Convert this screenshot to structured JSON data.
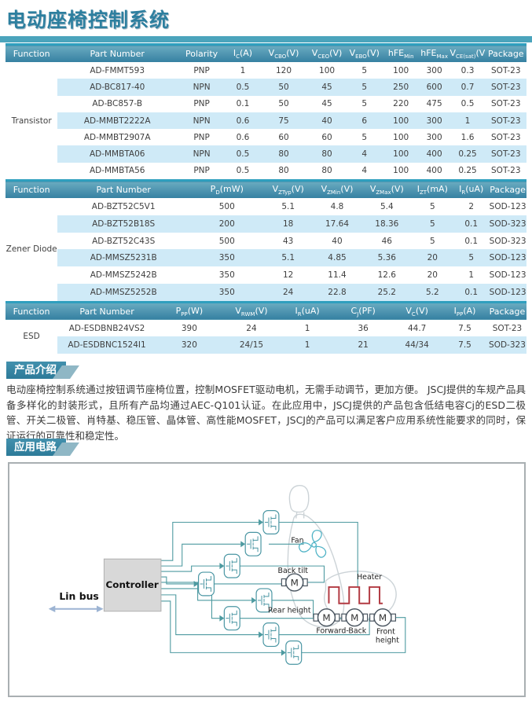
{
  "page": {
    "title": "电动座椅控制系统"
  },
  "colors": {
    "accent_teal": "#4ba4bc",
    "header_gradient_top": "#6aabc0",
    "header_gradient_bottom": "#3580a1",
    "row_stripe_blue": "#cfeaf7",
    "wire_teal": "#4d9aa0",
    "heater_red": "#b23a42",
    "fan_teal": "#4fb3c6",
    "seat_gray": "#ccd3d7"
  },
  "tables": [
    {
      "function_label": "Transistor",
      "col_widths": [
        "10%",
        "22.9%",
        "9.5%",
        "6.3%",
        "9.4%",
        "7.2%",
        "7.2%",
        "6.8%",
        "6%",
        "6.8%",
        "7.9%"
      ],
      "headers": [
        "Function",
        "Part Number",
        "Polarity",
        "I~C~(A)",
        "V~CBO~(V)",
        "V~CEO~(V)",
        "V~EBO~(V)",
        "hFE~Min~",
        "hFE~Max~",
        "V~CE(sat)~(V)",
        "Package"
      ],
      "rows": [
        [
          "AD-FMMT593",
          "PNP",
          "1",
          "120",
          "100",
          "5",
          "100",
          "300",
          "0.3",
          "SOT-23"
        ],
        [
          "AD-BC817-40",
          "NPN",
          "0.5",
          "50",
          "45",
          "5",
          "250",
          "600",
          "0.7",
          "SOT-23"
        ],
        [
          "AD-BC857-B",
          "PNP",
          "0.1",
          "50",
          "45",
          "5",
          "220",
          "475",
          "0.5",
          "SOT-23"
        ],
        [
          "AD-MMBT2222A",
          "NPN",
          "0.6",
          "75",
          "40",
          "6",
          "100",
          "300",
          "1",
          "SOT-23"
        ],
        [
          "AD-MMBT2907A",
          "PNP",
          "0.6",
          "60",
          "60",
          "5",
          "100",
          "300",
          "1.6",
          "SOT-23"
        ],
        [
          "AD-MMBTA06",
          "NPN",
          "0.5",
          "80",
          "80",
          "4",
          "100",
          "400",
          "0.25",
          "SOT-23"
        ],
        [
          "AD-MMBTA56",
          "PNP",
          "0.5",
          "80",
          "80",
          "4",
          "100",
          "400",
          "0.25",
          "SOT-23"
        ]
      ]
    },
    {
      "function_label": "Zener Diode",
      "col_widths": [
        "10%",
        "25.3%",
        "14.4%",
        "9.1%",
        "9.7%",
        "9.4%",
        "8.1%",
        "6.8%",
        "7.2%"
      ],
      "headers": [
        "Function",
        "Part Number",
        "P~D~(mW)",
        "V~ZTyp~(V)",
        "V~ZMin~(V)",
        "V~ZMax~(V)",
        "I~ZT~(mA)",
        "I~R~(uA)",
        "Package"
      ],
      "rows": [
        [
          "AD-BZT52C5V1",
          "500",
          "5.1",
          "4.8",
          "5.4",
          "5",
          "2",
          "SOD-123"
        ],
        [
          "AD-BZT52B18S",
          "200",
          "18",
          "17.64",
          "18.36",
          "5",
          "0.1",
          "SOD-323"
        ],
        [
          "AD-BZT52C43S",
          "500",
          "43",
          "40",
          "46",
          "5",
          "0.1",
          "SOD-323"
        ],
        [
          "AD-MMSZ5231B",
          "350",
          "5.1",
          "4.85",
          "5.36",
          "20",
          "5",
          "SOD-123"
        ],
        [
          "AD-MMSZ5242B",
          "350",
          "12",
          "11.4",
          "12.6",
          "20",
          "1",
          "SOD-123"
        ],
        [
          "AD-MMSZ5252B",
          "350",
          "24",
          "22.8",
          "25.2",
          "5.2",
          "0.1",
          "SOD-123"
        ]
      ]
    },
    {
      "function_label": "ESD",
      "col_widths": [
        "10%",
        "19%",
        "12.7%",
        "11.2%",
        "10.3%",
        "11.2%",
        "9.5%",
        "8.9%",
        "7.4%"
      ],
      "headers": [
        "Function",
        "Part Number",
        "P~PP~(W)",
        "V~RWM~(V)",
        "I~R~(uA)",
        "C~J~(PF)",
        "V~C~(V)",
        "I~PP~(A)",
        "Package"
      ],
      "rows": [
        [
          "AD-ESDBNB24VS2",
          "390",
          "24",
          "1",
          "36",
          "44.7",
          "7.5",
          "SOT-23"
        ],
        [
          "AD-ESDBNC1524I1",
          "320",
          "24/15",
          "1",
          "21",
          "44/34",
          "7.5",
          "SOD-323"
        ]
      ]
    }
  ],
  "sections": {
    "intro_title": "产品介绍",
    "intro_text": "电动座椅控制系统通过按钮调节座椅位置，控制MOSFET驱动电机，无需手动调节，更加方便。 JSCJ提供的车规产品具备多样化的封装形式，且所有产品均通过AEC-Q101认证。在此应用中，JSCJ提供的产品包含低结电容Cj的ESD二极管、开关二极管、肖特基、稳压管、晶体管、高性能MOSFET，JSCJ的产品可以满足客户应用系统性能要求的同时，保证运行的可靠性和稳定性。",
    "circuit_title": "应用电路"
  },
  "diagram": {
    "lin_bus": "Lin bus",
    "controller": "Controller",
    "fan": "Fan",
    "back_tilt": "Back tilt",
    "heater": "Heater",
    "rear_height": "Rear height",
    "forward_back": "Forward-Back",
    "front_height_line1": "Front",
    "front_height_line2": "height",
    "motor_letter": "M"
  }
}
